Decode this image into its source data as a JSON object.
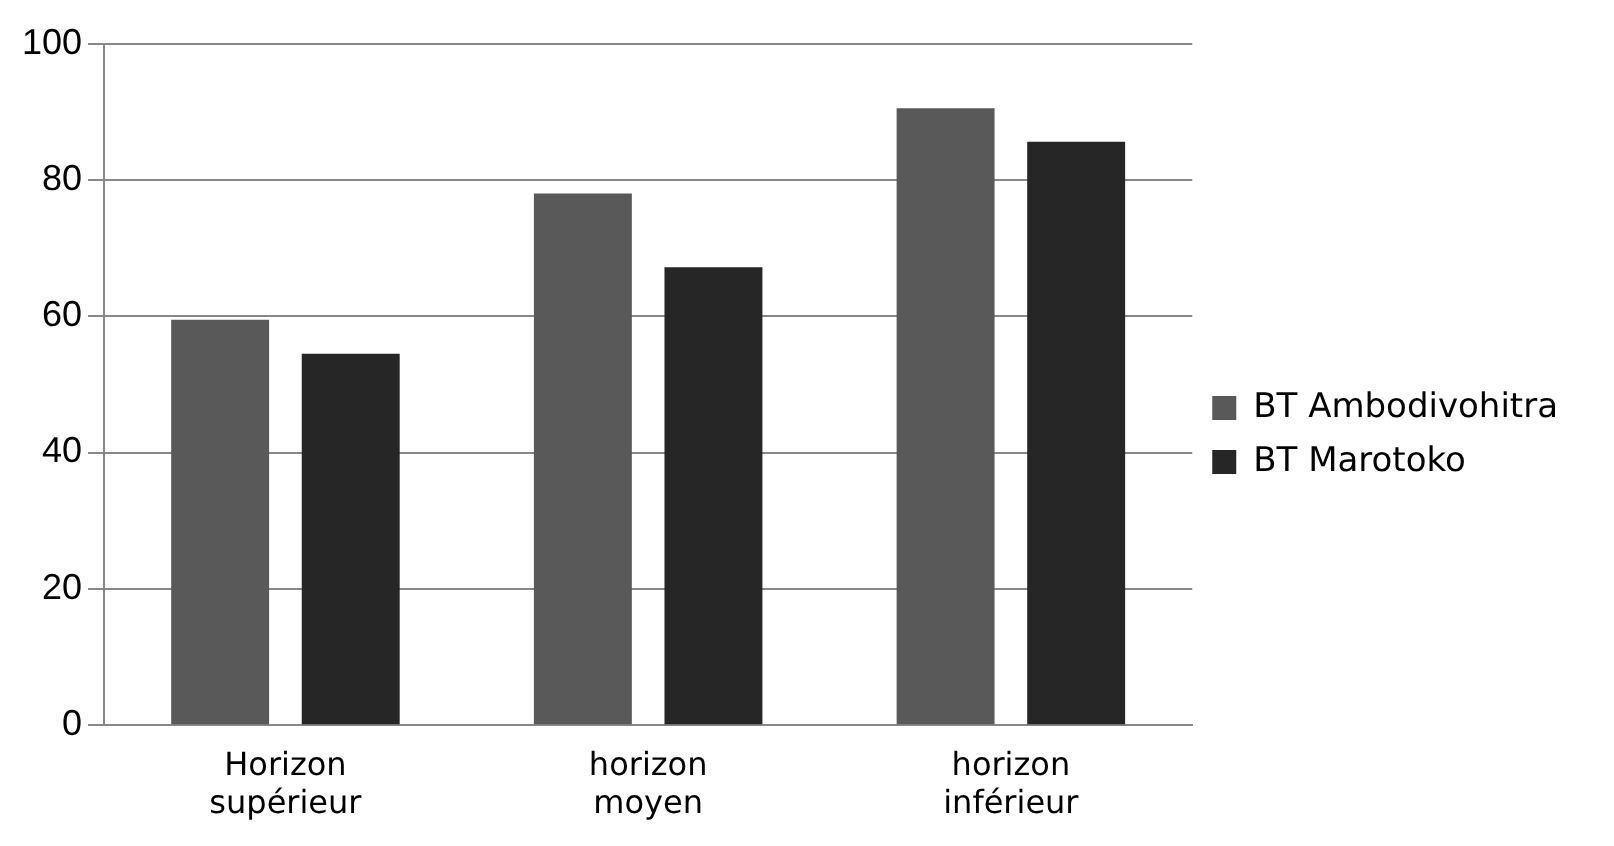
{
  "chart_data": {
    "type": "bar",
    "categories": [
      "Horizon supérieur",
      "horizon moyen",
      "horizon inférieur"
    ],
    "series": [
      {
        "name": "BT Ambodivohitra",
        "color": "#595959",
        "values": [
          59.5,
          78,
          90.5
        ]
      },
      {
        "name": "BT Marotoko",
        "color": "#262626",
        "values": [
          54.5,
          67.2,
          85.6
        ]
      }
    ],
    "ylim": [
      0,
      100
    ],
    "yticks": [
      0,
      20,
      40,
      60,
      80,
      100
    ],
    "grid": "y",
    "legend": "right"
  }
}
